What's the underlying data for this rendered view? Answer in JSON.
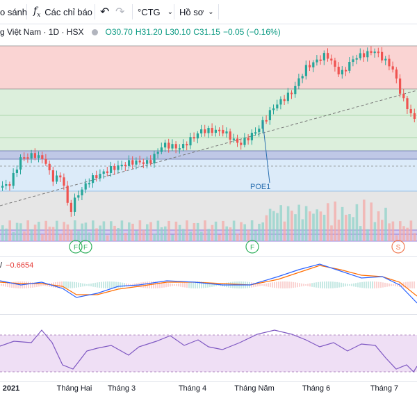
{
  "toolbar": {
    "compare_label": "o sánh",
    "indicators_label": "Các chỉ báo",
    "indicators_icon": "fx-icon",
    "undo_icon": "undo-icon",
    "redo_icon": "redo-icon",
    "symbol_label": "°CTG",
    "symbol_menu_icon": "chevron-down-icon",
    "profile_label": "Hồ sơ",
    "profile_menu_icon": "chevron-down-icon"
  },
  "legend": {
    "symbol": "g Việt Nam · 1D · HSX",
    "o": "O30.70",
    "h": "H31.20",
    "l": "L30.10",
    "c": "C31.15",
    "change": "−0.05 (−0.16%)"
  },
  "annotations": {
    "poe_label": "POE1",
    "flags": [
      "F",
      "F",
      "F"
    ],
    "split_flag": "S"
  },
  "macd": {
    "label_prefix": "/",
    "value": "−0.6654"
  },
  "xaxis": {
    "labels": [
      "2021",
      "Tháng Hai",
      "Tháng 3",
      "Tháng 4",
      "Tháng Năm",
      "Tháng 6",
      "Tháng 7"
    ]
  },
  "colors": {
    "up": "#26a69a",
    "down": "#ef5350",
    "zone_red": "#fad4d3",
    "zone_green": "#dcefdc",
    "zone_blue": "#dcebf9",
    "zone_gray": "#e6e6e6",
    "zone_purple": "#d6cdf0",
    "rsi_band": "#efdff5"
  }
}
